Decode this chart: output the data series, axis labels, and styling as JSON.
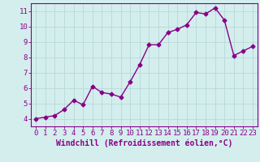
{
  "x": [
    0,
    1,
    2,
    3,
    4,
    5,
    6,
    7,
    8,
    9,
    10,
    11,
    12,
    13,
    14,
    15,
    16,
    17,
    18,
    19,
    20,
    21,
    22,
    23
  ],
  "y": [
    4.0,
    4.1,
    4.2,
    4.6,
    5.2,
    4.9,
    6.1,
    5.7,
    5.6,
    5.4,
    6.4,
    7.5,
    8.8,
    8.8,
    9.6,
    9.8,
    10.1,
    10.9,
    10.8,
    11.2,
    10.4,
    8.1,
    8.4,
    8.7
  ],
  "line_color": "#880088",
  "marker": "D",
  "marker_size": 2.5,
  "background_color": "#d4eeee",
  "grid_color": "#b8d8d8",
  "xlabel": "Windchill (Refroidissement éolien,°C)",
  "ylim": [
    3.5,
    11.5
  ],
  "xlim": [
    -0.5,
    23.5
  ],
  "yticks": [
    4,
    5,
    6,
    7,
    8,
    9,
    10,
    11
  ],
  "xticks": [
    0,
    1,
    2,
    3,
    4,
    5,
    6,
    7,
    8,
    9,
    10,
    11,
    12,
    13,
    14,
    15,
    16,
    17,
    18,
    19,
    20,
    21,
    22,
    23
  ],
  "xlabel_color": "#880088",
  "tick_color": "#880088",
  "axis_color": "#880088",
  "xlabel_fontsize": 7.0,
  "tick_fontsize": 6.5,
  "linewidth": 1.0
}
